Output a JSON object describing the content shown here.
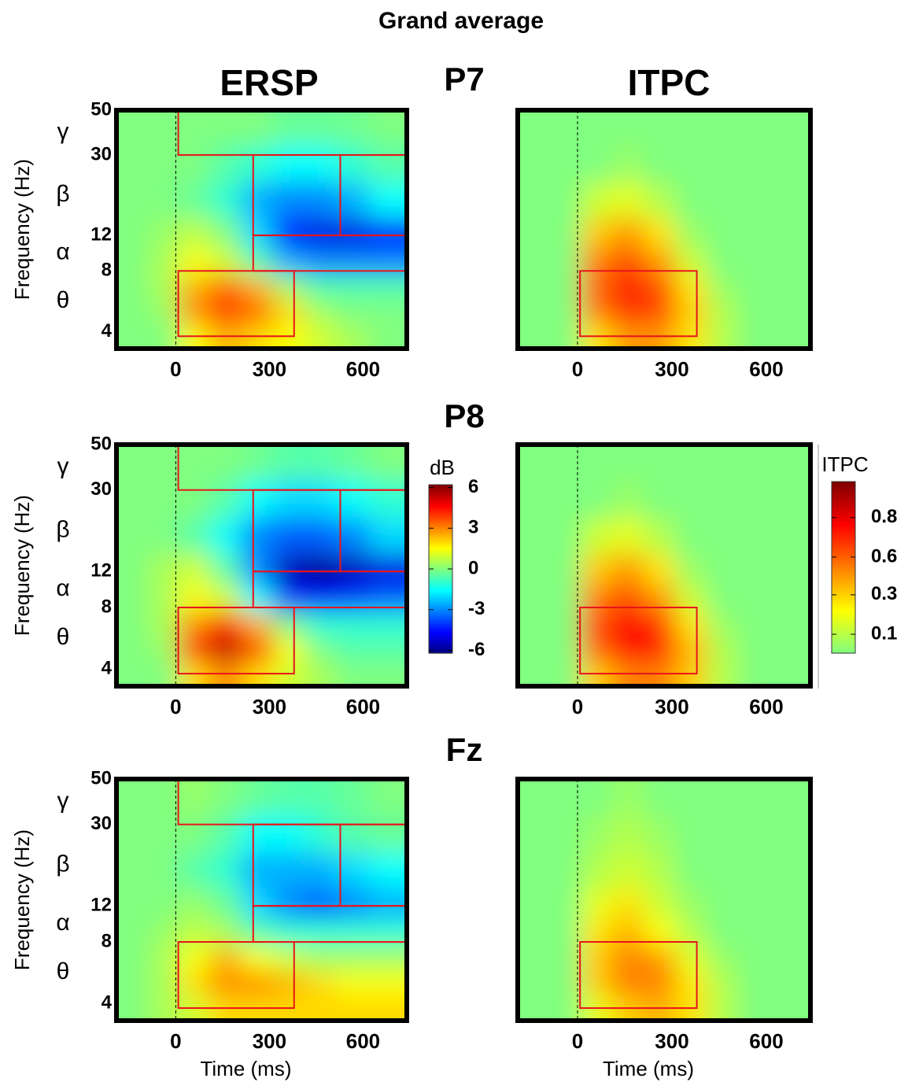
{
  "title": "Grand average",
  "column_titles": [
    "ERSP",
    "ITPC"
  ],
  "row_titles": [
    "P7",
    "P8",
    "Fz"
  ],
  "chart_data": [
    {
      "type": "heatmap",
      "ylabel": "Frequency (Hz)",
      "colormap": "jet",
      "clim": [
        -6.2,
        6.2
      ],
      "ylog": true,
      "x": [
        -140,
        -40,
        60,
        160,
        260,
        360,
        460,
        560,
        680
      ],
      "y": [
        3.8,
        5,
        6.5,
        9,
        12,
        18,
        27,
        42
      ],
      "z": [
        [
          0,
          0,
          1.5,
          2.5,
          2,
          1.5,
          1,
          0.5,
          0
        ],
        [
          0,
          0.3,
          3,
          4,
          3.5,
          2,
          0.5,
          0,
          0
        ],
        [
          0,
          0.5,
          2.5,
          3.5,
          2.5,
          0.5,
          -0.5,
          -0.5,
          -0.5
        ],
        [
          0,
          0.5,
          1.5,
          1,
          -0.5,
          -2.5,
          -3,
          -3,
          -3
        ],
        [
          0,
          0.3,
          0.8,
          0,
          -2,
          -4.5,
          -5,
          -5,
          -4.5
        ],
        [
          0,
          0,
          -0.3,
          -1,
          -2.5,
          -3,
          -3,
          -2.5,
          -1.5
        ],
        [
          0,
          0,
          0,
          -0.5,
          -1,
          -1.5,
          -1.5,
          -1,
          -0.5
        ],
        [
          0,
          0,
          0,
          0,
          0,
          -0.3,
          -0.3,
          -0.2,
          0
        ]
      ],
      "xlim": [
        -190,
        740
      ],
      "ylim": [
        3.3,
        50
      ],
      "xticks": [
        0,
        300,
        600
      ],
      "yticks": [
        4,
        8,
        12,
        30,
        50
      ],
      "bands": [
        {
          "label": "γ",
          "freq": [
            30,
            50
          ]
        },
        {
          "label": "β",
          "freq": [
            12,
            30
          ]
        },
        {
          "label": "α",
          "freq": [
            8,
            12
          ]
        },
        {
          "label": "θ",
          "freq": [
            4,
            8
          ]
        }
      ],
      "rois": [
        {
          "time": [
            8,
            740
          ],
          "freq": [
            30,
            50
          ]
        },
        {
          "time": [
            248,
            527
          ],
          "freq": [
            12,
            30
          ]
        },
        {
          "time": [
            527,
            740
          ],
          "freq": [
            12,
            30
          ]
        },
        {
          "time": [
            248,
            740
          ],
          "freq": [
            8,
            12
          ]
        },
        {
          "time": [
            8,
            379
          ],
          "freq": [
            3.8,
            8
          ]
        }
      ]
    },
    {
      "type": "heatmap",
      "colormap": "jet-upper-half",
      "clim": [
        0,
        1
      ],
      "ylog": true,
      "x": [
        -140,
        -40,
        60,
        160,
        260,
        360,
        460,
        560,
        680
      ],
      "y": [
        3.8,
        5,
        6.5,
        9,
        12,
        18,
        27,
        42
      ],
      "z": [
        [
          0,
          0,
          0.3,
          0.45,
          0.45,
          0.3,
          0.1,
          0,
          0
        ],
        [
          0,
          0,
          0.5,
          0.65,
          0.6,
          0.35,
          0.1,
          0,
          0
        ],
        [
          0,
          0,
          0.55,
          0.7,
          0.6,
          0.3,
          0.05,
          0,
          0
        ],
        [
          0,
          0,
          0.5,
          0.6,
          0.45,
          0.15,
          0,
          0,
          0
        ],
        [
          0,
          0,
          0.35,
          0.45,
          0.3,
          0.05,
          0,
          0,
          0
        ],
        [
          0,
          0,
          0.15,
          0.2,
          0.1,
          0,
          0,
          0,
          0
        ],
        [
          0,
          0,
          0,
          0.05,
          0,
          0,
          0,
          0,
          0
        ],
        [
          0,
          0,
          0,
          0,
          0,
          0,
          0,
          0,
          0
        ]
      ],
      "xlim": [
        -190,
        740
      ],
      "ylim": [
        3.3,
        50
      ],
      "xticks": [
        0,
        300,
        600
      ],
      "rois": [
        {
          "time": [
            8,
            379
          ],
          "freq": [
            3.8,
            8
          ]
        }
      ]
    },
    {
      "type": "heatmap",
      "ylabel": "Frequency (Hz)",
      "colormap": "jet",
      "clim": [
        -6.2,
        6.2
      ],
      "ylog": true,
      "x": [
        -140,
        -40,
        60,
        160,
        260,
        360,
        460,
        560,
        680
      ],
      "y": [
        3.8,
        5,
        6.5,
        9,
        12,
        18,
        27,
        42
      ],
      "z": [
        [
          0,
          0,
          2,
          3,
          2,
          1,
          0.5,
          0,
          0
        ],
        [
          0,
          0.3,
          4,
          5.5,
          4,
          1.5,
          0,
          -0.5,
          -0.5
        ],
        [
          0,
          0.5,
          3,
          4.5,
          2.5,
          0,
          -1,
          -1,
          -1
        ],
        [
          0,
          0.5,
          1.5,
          1,
          -1.5,
          -4,
          -4.5,
          -4,
          -3.5
        ],
        [
          0,
          0.5,
          1,
          -0.5,
          -3,
          -5.5,
          -6,
          -5.5,
          -5
        ],
        [
          0,
          0,
          -0.5,
          -1.5,
          -3,
          -3.5,
          -3.5,
          -3,
          -2
        ],
        [
          0,
          0,
          0,
          -0.5,
          -1.5,
          -2,
          -2,
          -1.5,
          -1
        ],
        [
          0,
          0,
          0,
          0,
          -0.2,
          -0.5,
          -0.5,
          -0.3,
          0
        ]
      ],
      "xlim": [
        -190,
        740
      ],
      "ylim": [
        3.3,
        50
      ],
      "xticks": [
        0,
        300,
        600
      ],
      "yticks": [
        4,
        8,
        12,
        30,
        50
      ],
      "bands": [
        {
          "label": "γ",
          "freq": [
            30,
            50
          ]
        },
        {
          "label": "β",
          "freq": [
            12,
            30
          ]
        },
        {
          "label": "α",
          "freq": [
            8,
            12
          ]
        },
        {
          "label": "θ",
          "freq": [
            4,
            8
          ]
        }
      ],
      "rois": [
        {
          "time": [
            8,
            740
          ],
          "freq": [
            30,
            50
          ]
        },
        {
          "time": [
            248,
            527
          ],
          "freq": [
            12,
            30
          ]
        },
        {
          "time": [
            527,
            740
          ],
          "freq": [
            12,
            30
          ]
        },
        {
          "time": [
            248,
            740
          ],
          "freq": [
            8,
            12
          ]
        },
        {
          "time": [
            8,
            379
          ],
          "freq": [
            3.8,
            8
          ]
        }
      ],
      "colorbar": {
        "label": "dB",
        "ticks": [
          6,
          3,
          0,
          -3,
          -6
        ]
      }
    },
    {
      "type": "heatmap",
      "colormap": "jet-upper-half",
      "clim": [
        0,
        1
      ],
      "ylog": true,
      "x": [
        -140,
        -40,
        60,
        160,
        260,
        360,
        460,
        560,
        680
      ],
      "y": [
        3.8,
        5,
        6.5,
        9,
        12,
        18,
        27,
        42
      ],
      "z": [
        [
          0,
          0,
          0.35,
          0.5,
          0.5,
          0.35,
          0.1,
          0,
          0
        ],
        [
          0,
          0,
          0.55,
          0.75,
          0.7,
          0.4,
          0.1,
          0,
          0
        ],
        [
          0,
          0,
          0.6,
          0.75,
          0.65,
          0.3,
          0.05,
          0,
          0
        ],
        [
          0,
          0,
          0.5,
          0.6,
          0.45,
          0.15,
          0,
          0,
          0
        ],
        [
          0,
          0,
          0.35,
          0.45,
          0.3,
          0.05,
          0,
          0,
          0
        ],
        [
          0,
          0,
          0.15,
          0.2,
          0.1,
          0,
          0,
          0,
          0
        ],
        [
          0,
          0,
          0,
          0.05,
          0,
          0,
          0,
          0,
          0
        ],
        [
          0,
          0,
          0,
          0,
          0,
          0,
          0,
          0,
          0
        ]
      ],
      "xlim": [
        -190,
        740
      ],
      "ylim": [
        3.3,
        50
      ],
      "xticks": [
        0,
        300,
        600
      ],
      "rois": [
        {
          "time": [
            8,
            379
          ],
          "freq": [
            3.8,
            8
          ]
        }
      ],
      "colorbar": {
        "label": "ITPC",
        "ticks": [
          {
            "value": 0.79,
            "label": "0.8"
          },
          {
            "value": 0.56,
            "label": "0.6"
          },
          {
            "value": 0.34,
            "label": "0.3"
          },
          {
            "value": 0.11,
            "label": "0.1"
          }
        ]
      }
    },
    {
      "type": "heatmap",
      "ylabel": "Frequency (Hz)",
      "xlabel": "Time (ms)",
      "colormap": "jet",
      "clim": [
        -6.2,
        6.2
      ],
      "ylog": true,
      "x": [
        -140,
        -40,
        60,
        160,
        260,
        360,
        460,
        560,
        680
      ],
      "y": [
        3.8,
        5,
        6.5,
        9,
        12,
        18,
        27,
        42
      ],
      "z": [
        [
          0,
          0.5,
          1,
          2,
          2,
          2,
          2,
          2,
          2
        ],
        [
          0,
          0.5,
          2,
          3,
          3,
          2.5,
          2,
          1.5,
          1.5
        ],
        [
          0,
          0.5,
          1.5,
          2.5,
          1.5,
          1,
          0.5,
          0.5,
          0.5
        ],
        [
          0,
          0.3,
          0.8,
          0.5,
          -0.5,
          -1,
          -1,
          -1,
          -1
        ],
        [
          0,
          0,
          0.3,
          -0.3,
          -2,
          -3,
          -3.5,
          -3,
          -2.5
        ],
        [
          0,
          0,
          -0.5,
          -1,
          -2.5,
          -2.5,
          -2.5,
          -2,
          -1.5
        ],
        [
          0,
          0,
          0,
          -0.5,
          -1.5,
          -1.5,
          -1,
          -0.5,
          -0.3
        ],
        [
          0,
          0,
          0.3,
          0,
          -0.3,
          -0.5,
          -0.5,
          -0.3,
          0
        ]
      ],
      "xlim": [
        -190,
        740
      ],
      "ylim": [
        3.3,
        50
      ],
      "xticks": [
        0,
        300,
        600
      ],
      "yticks": [
        4,
        8,
        12,
        30,
        50
      ],
      "bands": [
        {
          "label": "γ",
          "freq": [
            30,
            50
          ]
        },
        {
          "label": "β",
          "freq": [
            12,
            30
          ]
        },
        {
          "label": "α",
          "freq": [
            8,
            12
          ]
        },
        {
          "label": "θ",
          "freq": [
            4,
            8
          ]
        }
      ],
      "rois": [
        {
          "time": [
            8,
            740
          ],
          "freq": [
            30,
            50
          ]
        },
        {
          "time": [
            248,
            527
          ],
          "freq": [
            12,
            30
          ]
        },
        {
          "time": [
            527,
            740
          ],
          "freq": [
            12,
            30
          ]
        },
        {
          "time": [
            248,
            740
          ],
          "freq": [
            8,
            12
          ]
        },
        {
          "time": [
            8,
            379
          ],
          "freq": [
            3.8,
            8
          ]
        }
      ]
    },
    {
      "type": "heatmap",
      "xlabel": "Time (ms)",
      "colormap": "jet-upper-half",
      "clim": [
        0,
        1
      ],
      "ylog": true,
      "x": [
        -140,
        -40,
        60,
        160,
        260,
        360,
        460,
        560,
        680
      ],
      "y": [
        3.8,
        5,
        6.5,
        9,
        12,
        18,
        27,
        42
      ],
      "z": [
        [
          0,
          0,
          0.2,
          0.35,
          0.4,
          0.3,
          0.1,
          0,
          0
        ],
        [
          0,
          0,
          0.35,
          0.5,
          0.5,
          0.3,
          0.1,
          0,
          0
        ],
        [
          0,
          0,
          0.35,
          0.5,
          0.45,
          0.2,
          0.05,
          0,
          0
        ],
        [
          0,
          0,
          0.3,
          0.4,
          0.25,
          0.1,
          0,
          0,
          0
        ],
        [
          0,
          0,
          0.2,
          0.3,
          0.15,
          0.05,
          0,
          0,
          0
        ],
        [
          0,
          0,
          0.1,
          0.15,
          0.1,
          0,
          0,
          0,
          0
        ],
        [
          0,
          0,
          0.05,
          0.1,
          0.05,
          0,
          0,
          0,
          0
        ],
        [
          0,
          0,
          0,
          0.05,
          0,
          0,
          0,
          0,
          0
        ]
      ],
      "xlim": [
        -190,
        740
      ],
      "ylim": [
        3.3,
        50
      ],
      "xticks": [
        0,
        300,
        600
      ],
      "rois": [
        {
          "time": [
            8,
            379
          ],
          "freq": [
            3.8,
            8
          ]
        }
      ]
    }
  ]
}
